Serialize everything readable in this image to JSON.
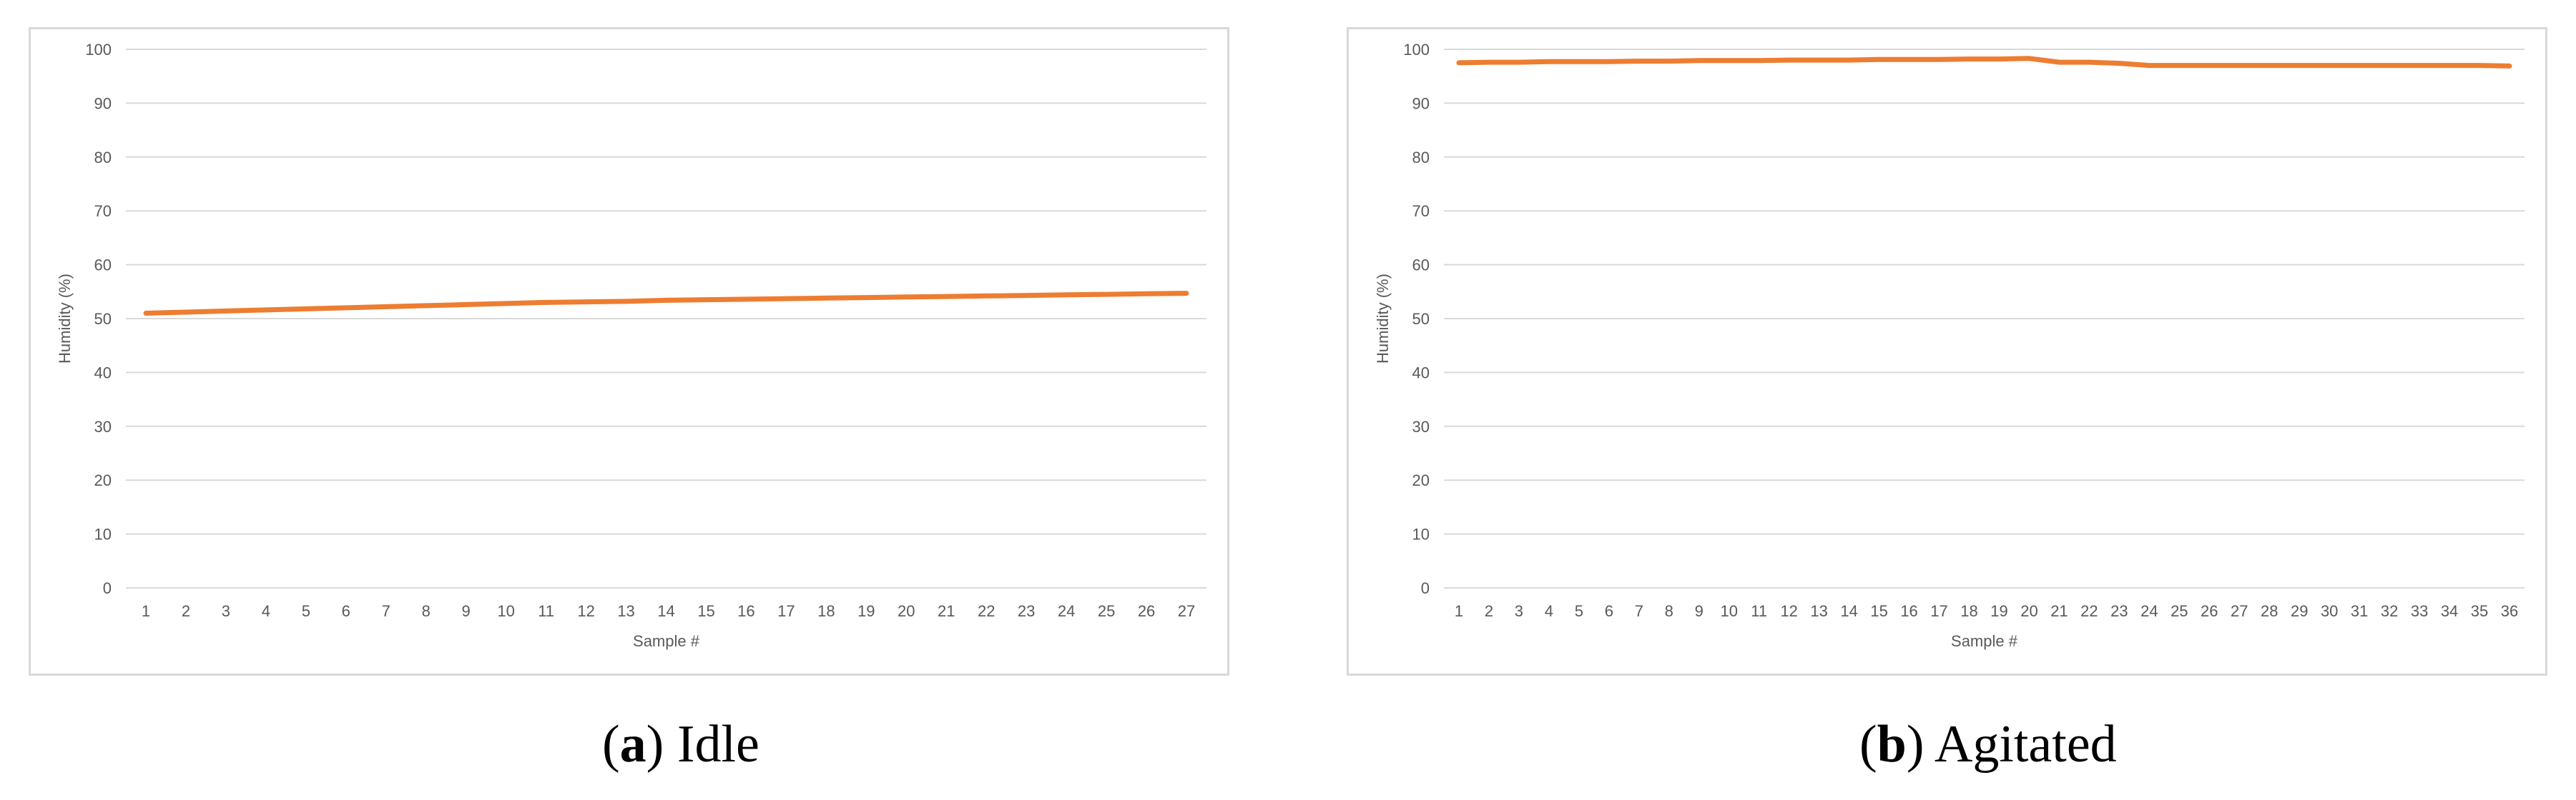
{
  "captions": {
    "a": {
      "letter": "a",
      "text": "Idle"
    },
    "b": {
      "letter": "b",
      "text": "Agitated"
    }
  },
  "colors": {
    "series": "#ed7d31",
    "grid": "#d9d9d9",
    "text": "#595959"
  },
  "chart_data": [
    {
      "type": "line",
      "title": "",
      "xlabel": "Sample #",
      "ylabel": "Humidity (%)",
      "ylim": [
        0,
        100
      ],
      "yticks": [
        0,
        10,
        20,
        30,
        40,
        50,
        60,
        70,
        80,
        90,
        100
      ],
      "grid": true,
      "categories": [
        "1",
        "2",
        "3",
        "4",
        "5",
        "6",
        "7",
        "8",
        "9",
        "10",
        "11",
        "12",
        "13",
        "14",
        "15",
        "16",
        "17",
        "18",
        "19",
        "20",
        "21",
        "22",
        "23",
        "24",
        "25",
        "26",
        "27"
      ],
      "series": [
        {
          "values": [
            51.0,
            51.2,
            51.4,
            51.6,
            51.8,
            52.0,
            52.2,
            52.4,
            52.6,
            52.8,
            53.0,
            53.1,
            53.2,
            53.4,
            53.5,
            53.6,
            53.7,
            53.8,
            53.9,
            54.0,
            54.1,
            54.2,
            54.3,
            54.4,
            54.5,
            54.6,
            54.7
          ]
        }
      ]
    },
    {
      "type": "line",
      "title": "",
      "xlabel": "Sample #",
      "ylabel": "Humidity (%)",
      "ylim": [
        0,
        100
      ],
      "yticks": [
        0,
        10,
        20,
        30,
        40,
        50,
        60,
        70,
        80,
        90,
        100
      ],
      "grid": true,
      "categories": [
        "1",
        "2",
        "3",
        "4",
        "5",
        "6",
        "7",
        "8",
        "9",
        "10",
        "11",
        "12",
        "13",
        "14",
        "15",
        "16",
        "17",
        "18",
        "19",
        "20",
        "21",
        "22",
        "23",
        "24",
        "25",
        "26",
        "27",
        "28",
        "29",
        "30",
        "31",
        "32",
        "33",
        "34",
        "35",
        "36"
      ],
      "series": [
        {
          "values": [
            97.5,
            97.6,
            97.6,
            97.7,
            97.7,
            97.7,
            97.8,
            97.8,
            97.9,
            97.9,
            97.9,
            98.0,
            98.0,
            98.0,
            98.1,
            98.1,
            98.1,
            98.2,
            98.2,
            98.3,
            97.6,
            97.6,
            97.4,
            97.0,
            97.0,
            97.0,
            97.0,
            97.0,
            97.0,
            97.0,
            97.0,
            97.0,
            97.0,
            97.0,
            97.0,
            96.9
          ]
        }
      ]
    }
  ]
}
